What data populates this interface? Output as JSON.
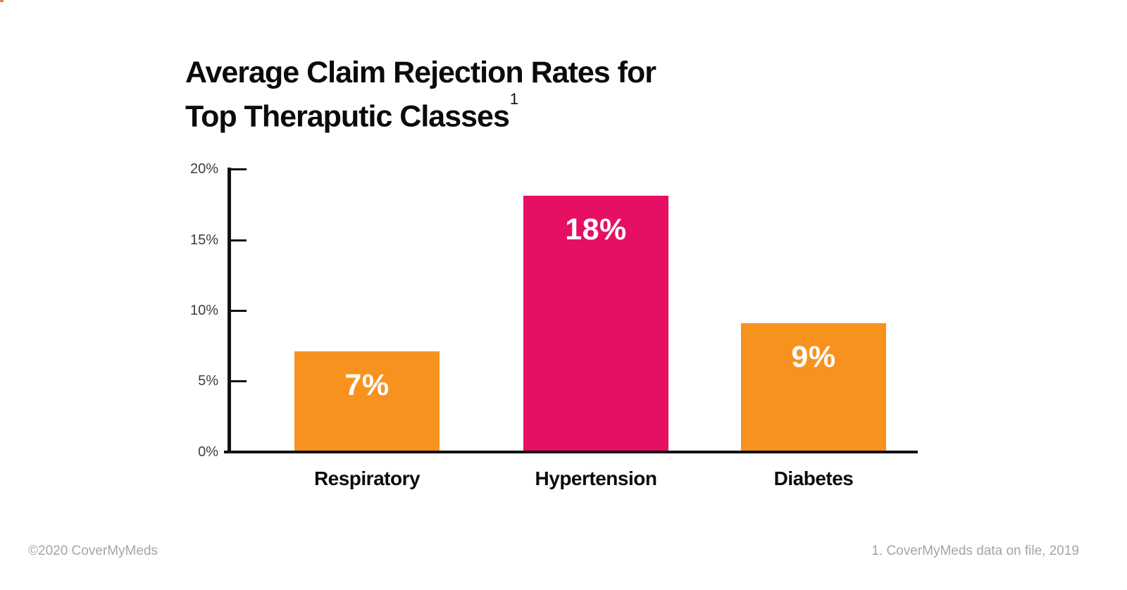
{
  "page": {
    "title_line1": "Average Claim Rejection Rates for",
    "title_line2": "Top Theraputic Classes",
    "title_footnote_marker": "1"
  },
  "footer": {
    "left": "©2020 CoverMyMeds",
    "right": "1. CoverMyMeds data on file, 2019"
  },
  "chart_data": {
    "type": "bar",
    "title": "Average Claim Rejection Rates for Top Theraputic Classes",
    "categories": [
      "Respiratory",
      "Hypertension",
      "Diabetes"
    ],
    "values": [
      7,
      18,
      9
    ],
    "value_labels": [
      "7%",
      "18%",
      "9%"
    ],
    "bar_colors": [
      "#F8921E",
      "#E50F63",
      "#F8921E"
    ],
    "ytick_labels": [
      "0%",
      "5%",
      "10%",
      "15%",
      "20%"
    ],
    "ylim": [
      0,
      20
    ],
    "xlabel": "",
    "ylabel": "",
    "grid": false,
    "legend": false
  },
  "colors": {
    "orange": "#F8921E",
    "pink": "#E50F63",
    "axis": "#121212",
    "tick_label_text": "#3E3E3E",
    "footer_text": "#A9A3A3",
    "title_text": "#0B0B0B",
    "bar_value_text": "#FFFFFF"
  }
}
